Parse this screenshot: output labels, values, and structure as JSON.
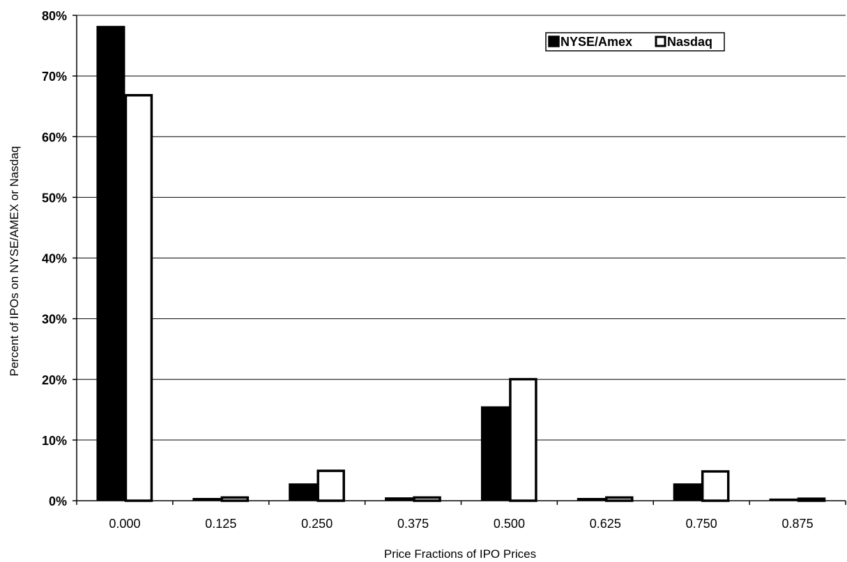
{
  "chart_data": {
    "type": "bar",
    "title": "",
    "xlabel": "Price Fractions of IPO Prices",
    "ylabel": "Percent of IPOs on NYSE/AMEX or Nasdaq",
    "categories": [
      "0.000",
      "0.125",
      "0.250",
      "0.375",
      "0.500",
      "0.625",
      "0.750",
      "0.875"
    ],
    "series": [
      {
        "name": "NYSE/Amex",
        "color": "#000000",
        "values": [
          78.2,
          0.4,
          2.8,
          0.5,
          15.5,
          0.4,
          2.8,
          0.3
        ]
      },
      {
        "name": "Nasdaq",
        "color": "#ffffff",
        "values": [
          67.0,
          0.7,
          5.1,
          0.7,
          20.2,
          0.7,
          5.0,
          0.5
        ]
      }
    ],
    "ylim": [
      0,
      80
    ],
    "yticks": [
      "0%",
      "10%",
      "20%",
      "30%",
      "40%",
      "50%",
      "60%",
      "70%",
      "80%"
    ],
    "grid": true,
    "legend_position": "top-right"
  }
}
